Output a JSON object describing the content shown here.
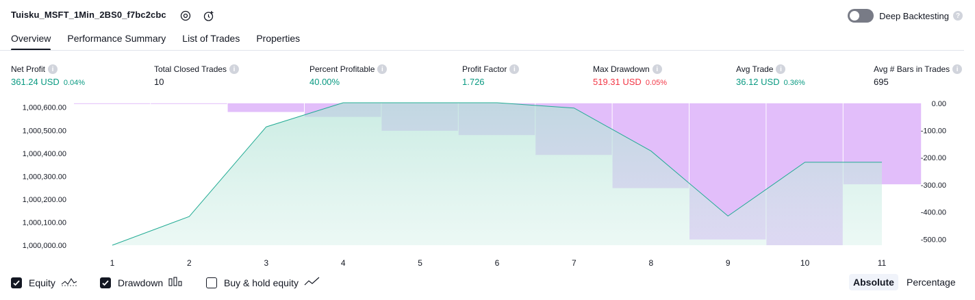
{
  "header": {
    "title": "Tuisku_MSFT_1Min_2BS0_f7bc2cbc",
    "deep_backtesting_label": "Deep Backtesting",
    "deep_backtesting_on": false
  },
  "tabs": [
    {
      "label": "Overview",
      "active": true
    },
    {
      "label": "Performance Summary",
      "active": false
    },
    {
      "label": "List of Trades",
      "active": false
    },
    {
      "label": "Properties",
      "active": false
    }
  ],
  "metrics": [
    {
      "label": "Net Profit",
      "value": "361.24 USD",
      "pct": "0.04%",
      "color": "#089981"
    },
    {
      "label": "Total Closed Trades",
      "value": "10",
      "pct": "",
      "color": "#131722"
    },
    {
      "label": "Percent Profitable",
      "value": "40.00%",
      "pct": "",
      "color": "#089981"
    },
    {
      "label": "Profit Factor",
      "value": "1.726",
      "pct": "",
      "color": "#089981"
    },
    {
      "label": "Max Drawdown",
      "value": "519.31 USD",
      "pct": "0.05%",
      "color": "#f23645"
    },
    {
      "label": "Avg Trade",
      "value": "36.12 USD",
      "pct": "0.36%",
      "color": "#089981"
    },
    {
      "label": "Avg # Bars in Trades",
      "value": "695",
      "pct": "",
      "color": "#131722"
    }
  ],
  "chart_data": {
    "type": "area",
    "x": [
      1,
      2,
      3,
      4,
      5,
      6,
      7,
      8,
      9,
      10,
      11
    ],
    "left_axis": {
      "ticks": [
        "1,000,600.00",
        "1,000,500.00",
        "1,000,400.00",
        "1,000,300.00",
        "1,000,200.00",
        "1,000,100.00",
        "1,000,000.00"
      ],
      "ylim": [
        1000000,
        1000620
      ]
    },
    "right_axis": {
      "ticks": [
        "0.00",
        "-100.00",
        "-200.00",
        "-300.00",
        "-400.00",
        "-500.00"
      ],
      "ylim": [
        -522,
        2
      ]
    },
    "series": [
      {
        "name": "Equity",
        "type": "line",
        "axis": "left",
        "values": [
          1000000,
          1000125,
          1000515,
          1000620,
          1000620,
          1000620,
          1000597,
          1000410,
          1000127,
          1000361,
          1000361
        ]
      },
      {
        "name": "Drawdown",
        "type": "bar",
        "axis": "right",
        "values": [
          0,
          -1,
          -32,
          -50,
          -101,
          -117,
          -190,
          -312,
          -501,
          -522,
          -298
        ]
      }
    ],
    "colors": {
      "equity_line": "#22ab94",
      "drawdown": "#ce93f6"
    }
  },
  "legend": {
    "equity_label": "Equity",
    "equity_checked": true,
    "drawdown_label": "Drawdown",
    "drawdown_checked": true,
    "buyhold_label": "Buy & hold equity",
    "buyhold_checked": false
  },
  "mode": {
    "absolute_label": "Absolute",
    "percentage_label": "Percentage",
    "selected": "Absolute"
  }
}
